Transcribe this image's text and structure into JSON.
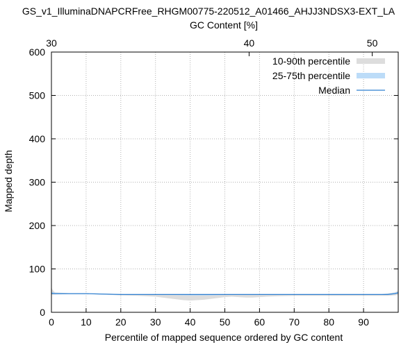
{
  "chart_data": {
    "type": "area",
    "title": "GS_v1_IlluminaDNAPCRFree_RHGM00775-220512_A01466_AHJJ3NDSX3-EXT_LA",
    "xlabel": "Percentile of mapped sequence ordered by GC content",
    "ylabel": "Mapped depth",
    "x2label": "GC Content [%]",
    "xlim": [
      0,
      100
    ],
    "ylim": [
      0,
      600
    ],
    "xticks": [
      0,
      10,
      20,
      30,
      40,
      50,
      60,
      70,
      80,
      90
    ],
    "yticks": [
      0,
      100,
      200,
      300,
      400,
      500,
      600
    ],
    "x2ticks": [
      {
        "label": "30",
        "percentile": 0
      },
      {
        "label": "40",
        "percentile": 57
      },
      {
        "label": "50",
        "percentile": 92.5
      }
    ],
    "grid": true,
    "legend_position": "top-right",
    "series": [
      {
        "name": "10-90th percentile",
        "color": "#dddddd",
        "x": [
          0,
          0.3,
          1,
          5,
          10,
          15,
          20,
          25,
          30,
          33,
          36,
          38,
          40,
          42,
          44,
          46,
          48,
          50,
          52,
          54,
          56,
          58,
          60,
          62,
          65,
          70,
          75,
          80,
          85,
          90,
          95,
          97,
          99,
          100
        ],
        "upper": [
          58,
          52,
          46,
          44,
          44,
          43,
          42,
          42,
          42,
          42,
          42,
          42,
          42,
          42,
          42,
          42,
          42,
          42,
          42,
          42,
          42,
          42,
          42,
          42,
          42,
          42,
          42,
          42,
          42,
          42,
          42,
          44,
          46,
          50
        ],
        "lower": [
          40,
          40,
          41,
          42,
          42,
          41,
          39,
          38,
          36,
          33,
          30,
          28,
          27,
          28,
          29,
          31,
          33,
          35,
          36,
          35,
          34,
          34,
          35,
          36,
          37,
          38,
          38,
          38,
          38,
          38,
          38,
          38,
          39,
          40
        ]
      },
      {
        "name": "25-75th percentile",
        "color": "#bcdcf8",
        "x": [
          0,
          1,
          5,
          10,
          15,
          20,
          25,
          30,
          35,
          40,
          45,
          50,
          55,
          60,
          65,
          70,
          75,
          80,
          85,
          90,
          95,
          97,
          99,
          100
        ],
        "upper": [
          47,
          45,
          44,
          44,
          43,
          42,
          42,
          42,
          42,
          42,
          42,
          42,
          42,
          42,
          42,
          42,
          42,
          42,
          42,
          42,
          42,
          43,
          45,
          47
        ],
        "lower": [
          42,
          42,
          42,
          42,
          41,
          40,
          40,
          40,
          40,
          39,
          39,
          40,
          40,
          40,
          40,
          40,
          40,
          40,
          40,
          40,
          40,
          40,
          42,
          44
        ]
      },
      {
        "name": "Median",
        "color": "#2f7fd0",
        "x": [
          0,
          1,
          5,
          10,
          15,
          20,
          25,
          30,
          35,
          40,
          45,
          50,
          55,
          60,
          65,
          70,
          75,
          80,
          85,
          90,
          95,
          97,
          99,
          100
        ],
        "values": [
          44,
          43,
          43,
          43,
          42,
          41,
          41,
          41,
          41,
          41,
          41,
          41,
          41,
          41,
          41,
          41,
          41,
          41,
          41,
          41,
          41,
          41,
          43,
          45
        ]
      }
    ]
  }
}
